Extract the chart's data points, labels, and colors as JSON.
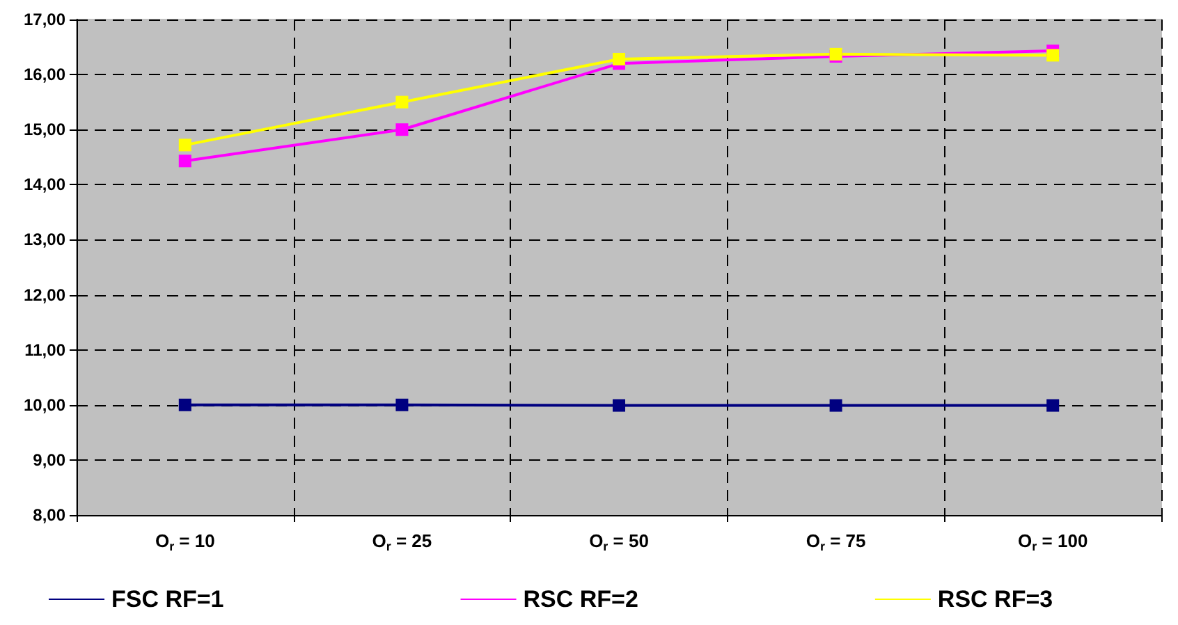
{
  "chart_data": {
    "type": "line",
    "categories": [
      "O$_{r}$ = 10",
      "O$_{r}$ = 25",
      "O$_{r}$ = 50",
      "O$_{r}$ = 75",
      "O$_{r}$ = 100"
    ],
    "series": [
      {
        "name": "FSC RF=1",
        "color": "#000080",
        "values": [
          10.0,
          10.0,
          9.99,
          9.99,
          9.99
        ]
      },
      {
        "name": "RSC RF=2",
        "color": "#ff00ff",
        "values": [
          14.43,
          15.0,
          16.2,
          16.33,
          16.43
        ]
      },
      {
        "name": "RSC RF=3",
        "color": "#ffff00",
        "values": [
          14.72,
          15.5,
          16.28,
          16.37,
          16.35
        ]
      }
    ],
    "ylim": [
      8,
      17
    ],
    "yticks": [
      {
        "value": 8,
        "label": "8,00"
      },
      {
        "value": 9,
        "label": "9,00"
      },
      {
        "value": 10,
        "label": "10,00"
      },
      {
        "value": 11,
        "label": "11,00"
      },
      {
        "value": 12,
        "label": "12,00"
      },
      {
        "value": 13,
        "label": "13,00"
      },
      {
        "value": 14,
        "label": "14,00"
      },
      {
        "value": 15,
        "label": "15,00"
      },
      {
        "value": 16,
        "label": "16,00"
      },
      {
        "value": 17,
        "label": "17,00"
      }
    ],
    "grid": true,
    "legend": "bottom",
    "marker": "square",
    "line_style": "solid"
  }
}
